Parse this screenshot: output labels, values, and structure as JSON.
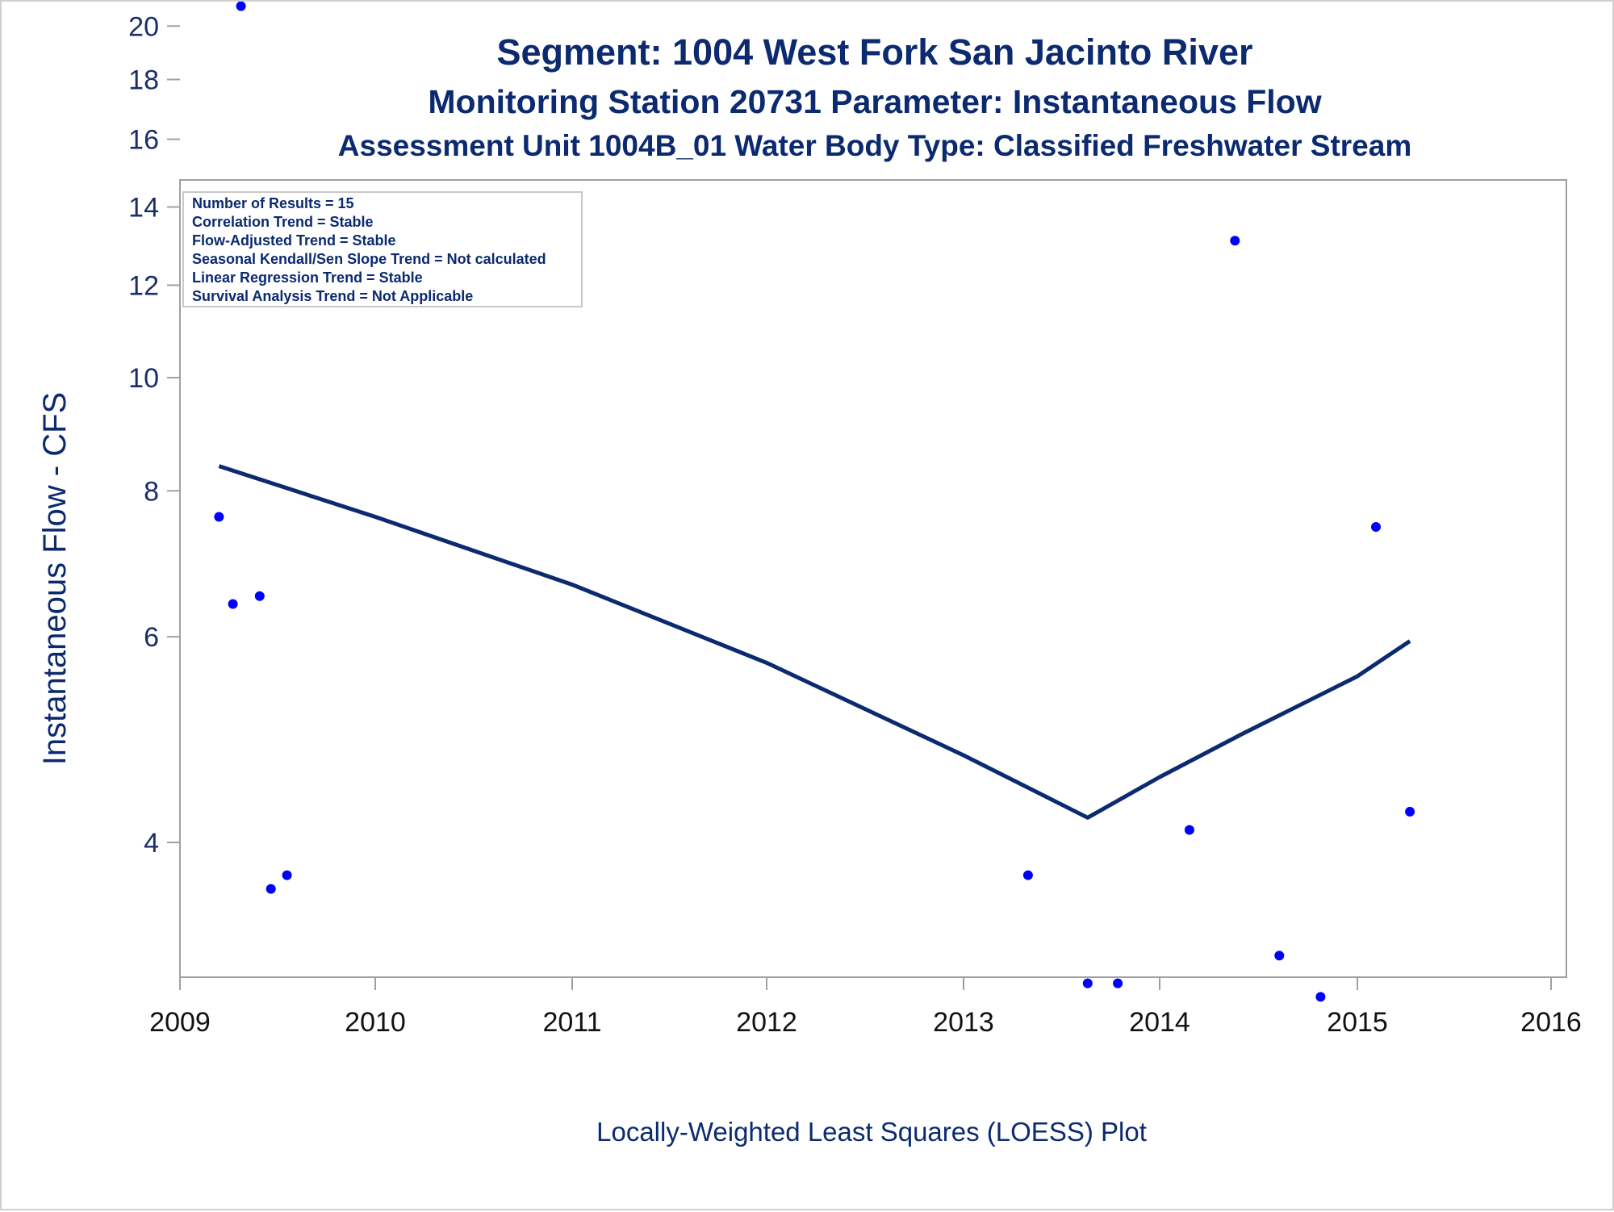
{
  "titles": {
    "line1": "Segment: 1004  West Fork San Jacinto River",
    "line2": "Monitoring Station 20731 Parameter: Instantaneous Flow",
    "line3": "Assessment Unit 1004B_01   Water Body Type: Classified Freshwater Stream"
  },
  "footnote": "Locally-Weighted Least Squares (LOESS) Plot",
  "stats_box": [
    "Number of Results = 15",
    "Correlation Trend = Stable",
    "Flow-Adjusted Trend = Stable",
    "Seasonal Kendall/Sen Slope Trend = Not calculated",
    "Linear Regression Trend = Stable",
    "Survival Analysis Trend = Not Applicable"
  ],
  "colors": {
    "title": "#0b2a6f",
    "points": "#0000ff",
    "loess_line": "#0b2a6f",
    "axis": "#a0a0a0"
  },
  "chart_data": {
    "type": "scatter",
    "title": "Segment: 1004  West Fork San Jacinto River",
    "ylabel": "Instantaneous Flow - CFS",
    "xlabel": "",
    "y_scale": "log",
    "xlim": [
      2009,
      2016
    ],
    "ylim": [
      2.9,
      21.5
    ],
    "x_ticks": [
      "2009",
      "2010",
      "2011",
      "2012",
      "2013",
      "2014",
      "2015",
      "2016"
    ],
    "y_ticks": [
      "4",
      "6",
      "8",
      "10",
      "12",
      "14",
      "16",
      "18",
      "20"
    ],
    "series": [
      {
        "type": "scatter",
        "points": [
          {
            "x": "2009-03-15",
            "y": 7.6
          },
          {
            "x": "2009-04-10",
            "y": 6.4
          },
          {
            "x": "2009-04-25",
            "y": 20.8
          },
          {
            "x": "2009-05-30",
            "y": 6.5
          },
          {
            "x": "2009-06-20",
            "y": 3.65
          },
          {
            "x": "2009-07-20",
            "y": 3.75
          },
          {
            "x": "2013-05-01",
            "y": 3.75
          },
          {
            "x": "2013-08-20",
            "y": 3.03
          },
          {
            "x": "2013-10-15",
            "y": 3.03
          },
          {
            "x": "2014-02-25",
            "y": 4.1
          },
          {
            "x": "2014-05-20",
            "y": 13.1
          },
          {
            "x": "2014-08-10",
            "y": 3.2
          },
          {
            "x": "2014-10-25",
            "y": 2.95
          },
          {
            "x": "2015-02-05",
            "y": 7.45
          },
          {
            "x": "2015-04-10",
            "y": 4.25
          }
        ]
      },
      {
        "type": "line",
        "points": [
          {
            "x": "2009-03-15",
            "y": 8.4
          },
          {
            "x": "2010-01-01",
            "y": 7.6
          },
          {
            "x": "2011-01-01",
            "y": 6.65
          },
          {
            "x": "2012-01-01",
            "y": 5.7
          },
          {
            "x": "2013-01-01",
            "y": 4.75
          },
          {
            "x": "2013-08-20",
            "y": 4.2
          },
          {
            "x": "2014-01-01",
            "y": 4.55
          },
          {
            "x": "2014-06-01",
            "y": 4.95
          },
          {
            "x": "2015-01-01",
            "y": 5.55
          },
          {
            "x": "2015-04-10",
            "y": 5.95
          }
        ]
      }
    ]
  }
}
